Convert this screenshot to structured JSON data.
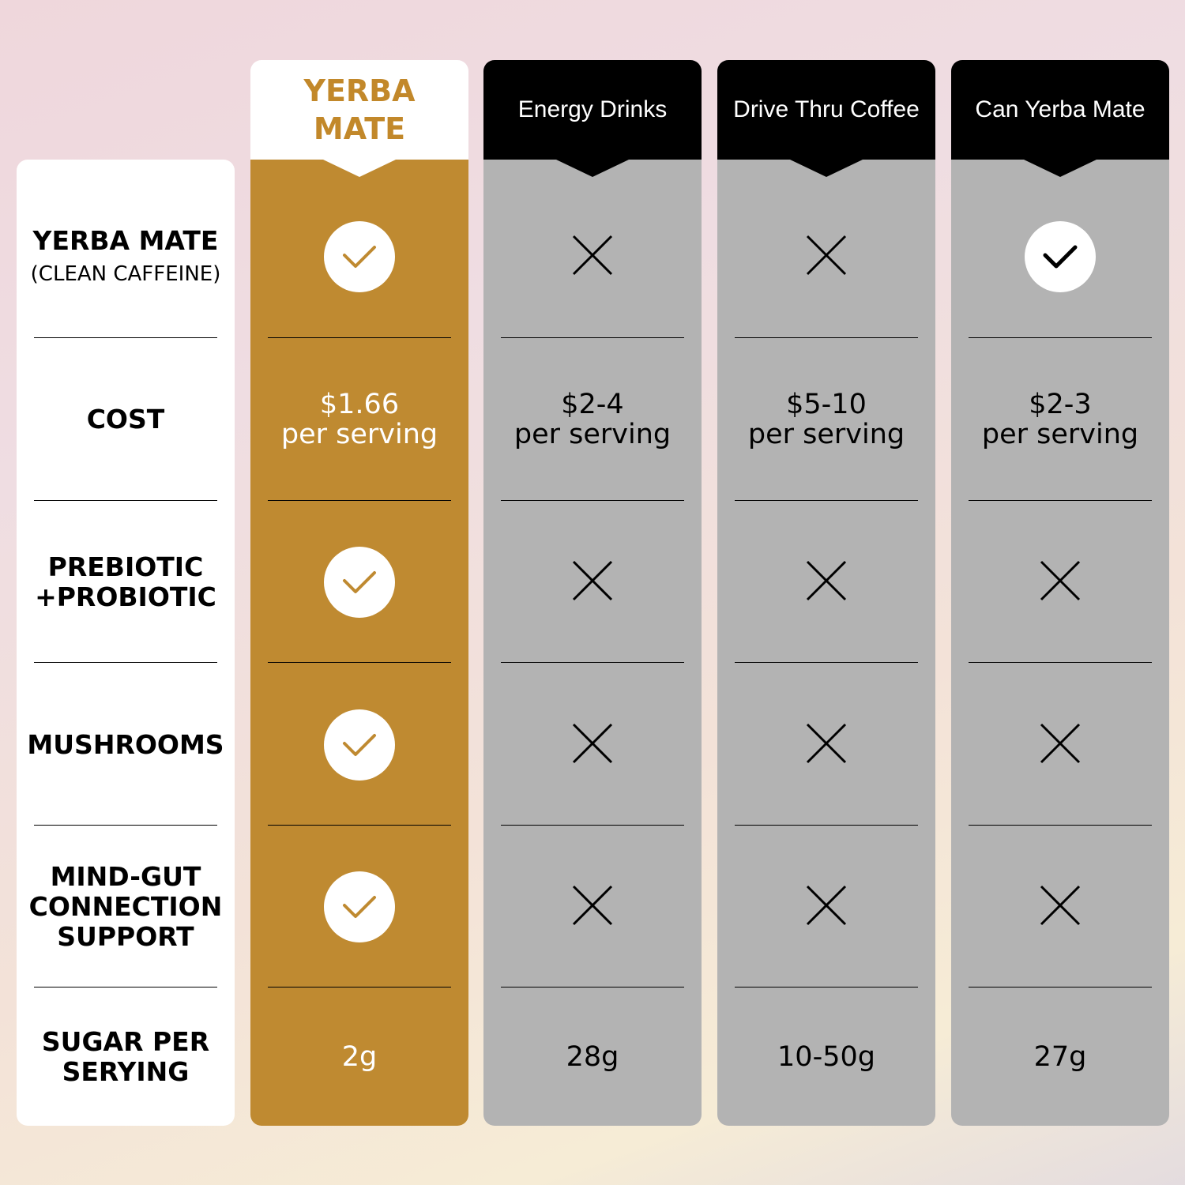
{
  "columns": [
    {
      "name": "YERBA MATE"
    },
    {
      "name": "Energy Drinks"
    },
    {
      "name": "Drive Thru Coffee"
    },
    {
      "name": "Can Yerba Mate"
    }
  ],
  "rows": [
    {
      "label": "YERBA MATE",
      "sublabel": "(CLEAN CAFFEINE)",
      "values": [
        "check",
        "x",
        "x",
        "check"
      ]
    },
    {
      "label": "COST",
      "sublabel": "",
      "values": [
        "$1.66\nper serving",
        "$2-4\nper serving",
        "$5-10\nper serving",
        "$2-3\nper serving"
      ]
    },
    {
      "label": "PREBIOTIC\n+PROBIOTIC",
      "sublabel": "",
      "values": [
        "check",
        "x",
        "x",
        "x"
      ]
    },
    {
      "label": "MUSHROOMS",
      "sublabel": "",
      "values": [
        "check",
        "x",
        "x",
        "x"
      ]
    },
    {
      "label": "MIND-GUT\nCONNECTION\nSUPPORT",
      "sublabel": "",
      "values": [
        "check",
        "x",
        "x",
        "x"
      ]
    },
    {
      "label": "SUGAR PER\nSERYING",
      "sublabel": "",
      "values": [
        "2g",
        "28g",
        "10-50g",
        "27g"
      ]
    }
  ],
  "colors": {
    "gold": "#bf8a31",
    "gold_text": "#c2882a",
    "grey": "#b3b3b3",
    "black": "#000000",
    "white": "#ffffff"
  },
  "icons": {
    "check": "check-icon",
    "x": "x-icon"
  }
}
